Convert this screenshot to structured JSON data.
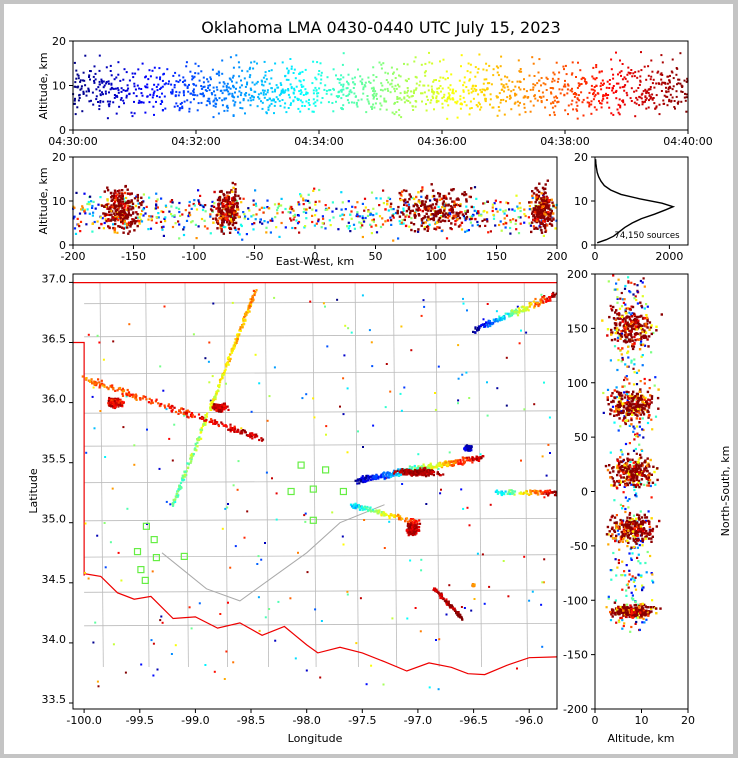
{
  "chart_data": {
    "type": "scatter",
    "title": "Oklahoma LMA 0430-0440 UTC July 15, 2023",
    "colormap": "jet (by time)",
    "panels": {
      "time_altitude": {
        "ylabel": "Altitude, km",
        "ylim": [
          0,
          20
        ],
        "yticks": [
          "0",
          "10",
          "20"
        ],
        "xlim": [
          "04:30:00",
          "04:40:00"
        ],
        "xticks": [
          "04:30:00",
          "04:32:00",
          "04:34:00",
          "04:36:00",
          "04:38:00",
          "04:40:00"
        ]
      },
      "ew_altitude": {
        "ylabel": "Altitude, km",
        "xlabel": "East-West, km",
        "xlim": [
          -200,
          200
        ],
        "ylim": [
          0,
          20
        ],
        "xticks": [
          "-200",
          "-150",
          "-100",
          "-50",
          "0",
          "50",
          "100",
          "150",
          "200"
        ],
        "yticks": [
          "0",
          "10",
          "20"
        ],
        "clusters": [
          {
            "x_center": -160,
            "x_width": 22,
            "alt_max": 19,
            "color": "#8b0000"
          },
          {
            "x_center": -72,
            "x_width": 14,
            "alt_max": 19,
            "color": "#8b0000"
          },
          {
            "x_center": 100,
            "x_width": 55,
            "alt_max": 18,
            "color": "#8b0000"
          },
          {
            "x_center": 188,
            "x_width": 12,
            "alt_max": 19,
            "color": "#8b0000"
          }
        ]
      },
      "altitude_histogram": {
        "annotation": "74,150 sources",
        "xlim": [
          0,
          2500
        ],
        "ylim": [
          0,
          20
        ],
        "xticks": [
          "0",
          "2000"
        ],
        "yticks": [
          "0",
          "10",
          "20"
        ],
        "profile": [
          {
            "alt": 0.5,
            "count": 60
          },
          {
            "alt": 1.2,
            "count": 300
          },
          {
            "alt": 2.0,
            "count": 500
          },
          {
            "alt": 3.0,
            "count": 650
          },
          {
            "alt": 4.0,
            "count": 800
          },
          {
            "alt": 5.0,
            "count": 1000
          },
          {
            "alt": 6.0,
            "count": 1250
          },
          {
            "alt": 7.0,
            "count": 1600
          },
          {
            "alt": 8.0,
            "count": 1900
          },
          {
            "alt": 8.7,
            "count": 2100
          },
          {
            "alt": 9.5,
            "count": 1800
          },
          {
            "alt": 10.5,
            "count": 1200
          },
          {
            "alt": 11.5,
            "count": 700
          },
          {
            "alt": 12.5,
            "count": 420
          },
          {
            "alt": 13.5,
            "count": 250
          },
          {
            "alt": 14.5,
            "count": 160
          },
          {
            "alt": 15.5,
            "count": 100
          },
          {
            "alt": 16.5,
            "count": 60
          },
          {
            "alt": 17.5,
            "count": 40
          },
          {
            "alt": 18.5,
            "count": 25
          },
          {
            "alt": 19.5,
            "count": 15
          }
        ]
      },
      "map": {
        "xlabel": "Longitude",
        "ylabel": "Latitude",
        "xlim": [
          -100.1,
          -95.75
        ],
        "ylim": [
          33.45,
          37.07
        ],
        "xticks": [
          "-100.0",
          "-99.5",
          "-99.0",
          "-98.5",
          "-98.0",
          "-97.5",
          "-97.0",
          "-96.5",
          "-96.0"
        ],
        "yticks": [
          "33.5",
          "34.0",
          "34.5",
          "35.0",
          "35.5",
          "36.0",
          "36.5",
          "37.0"
        ],
        "stations": [
          {
            "lon": -99.44,
            "lat": 34.97
          },
          {
            "lon": -99.37,
            "lat": 34.86
          },
          {
            "lon": -99.35,
            "lat": 34.71
          },
          {
            "lon": -99.52,
            "lat": 34.76
          },
          {
            "lon": -99.49,
            "lat": 34.61
          },
          {
            "lon": -99.45,
            "lat": 34.52
          },
          {
            "lon": -99.1,
            "lat": 34.72
          },
          {
            "lon": -98.05,
            "lat": 35.48
          },
          {
            "lon": -97.83,
            "lat": 35.44
          },
          {
            "lon": -97.94,
            "lat": 35.28
          },
          {
            "lon": -98.14,
            "lat": 35.26
          },
          {
            "lon": -97.94,
            "lat": 35.02
          },
          {
            "lon": -97.67,
            "lat": 35.26
          }
        ],
        "station_color": "#66ee44",
        "boundary_color": "#ff0000",
        "county_color": "#bbbbbb"
      },
      "ns_altitude": {
        "ylabel": "North-South, km",
        "xlabel": "Altitude, km",
        "xlim": [
          0,
          20
        ],
        "ylim": [
          -200,
          200
        ],
        "xticks": [
          "0",
          "10",
          "20"
        ],
        "yticks": [
          "-200",
          "-150",
          "-100",
          "-50",
          "0",
          "50",
          "100",
          "150",
          "200"
        ],
        "clusters": [
          {
            "y_center": 150,
            "y_width": 25
          },
          {
            "y_center": 80,
            "y_width": 22
          },
          {
            "y_center": 18,
            "y_width": 20
          },
          {
            "y_center": -35,
            "y_width": 18
          },
          {
            "y_center": -110,
            "y_width": 8
          }
        ]
      }
    }
  }
}
